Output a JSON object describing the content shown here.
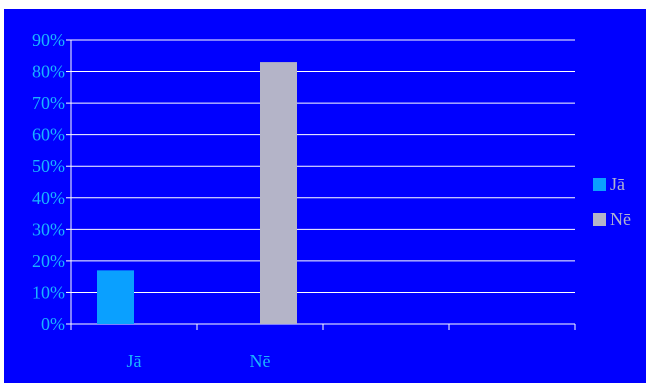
{
  "chart_data": {
    "type": "bar",
    "categories": [
      "Jā",
      "Nē"
    ],
    "series": [
      {
        "name": "Jā",
        "values": [
          17,
          null
        ],
        "color": "#0aa0ff"
      },
      {
        "name": "Nē",
        "values": [
          null,
          83
        ],
        "color": "#b4b4c8"
      }
    ],
    "x_slots": 4,
    "yticks": [
      "0%",
      "10%",
      "20%",
      "30%",
      "40%",
      "50%",
      "60%",
      "70%",
      "80%",
      "90%"
    ],
    "ylim": [
      0,
      90
    ],
    "grid": true,
    "legend": "right",
    "background": "#0000ff",
    "gridline_color": "#ffffff",
    "text_color": "#1ab4ff"
  }
}
